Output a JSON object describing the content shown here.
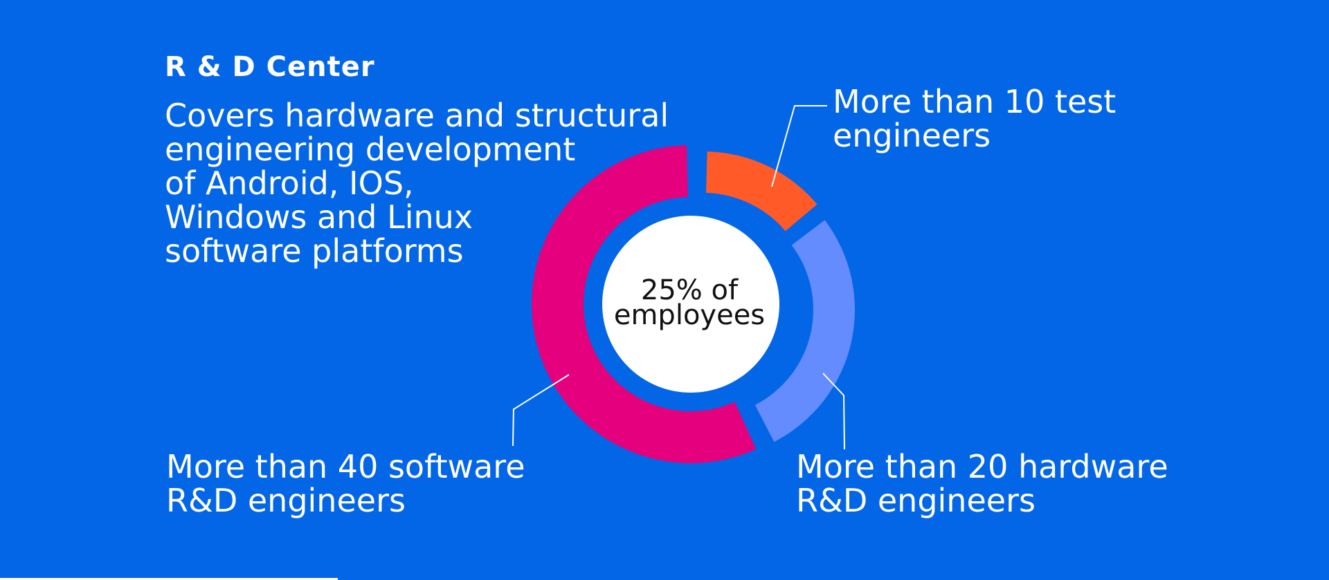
{
  "title": "R & D Center",
  "description": [
    "Covers hardware and structural",
    "engineering development",
    "of Android, IOS,",
    "Windows and Linux",
    "software platforms"
  ],
  "center_label": [
    "25% of",
    "employees"
  ],
  "colors": {
    "background": "#0366e6",
    "test": "#ff5a28",
    "hardware": "#648cff",
    "software": "#e5007d",
    "inner_ring": "#0366e6",
    "center": "#ffffff"
  },
  "chart_data": {
    "type": "pie",
    "categories": [
      "test engineers",
      "hardware R&D engineers",
      "software R&D engineers"
    ],
    "values": [
      10,
      20,
      40
    ],
    "labels": [
      [
        "More than 10 test",
        "engineers"
      ],
      [
        "More than 20 hardware",
        "R&D engineers"
      ],
      [
        "More than 40 software",
        "R&D engineers"
      ]
    ]
  }
}
